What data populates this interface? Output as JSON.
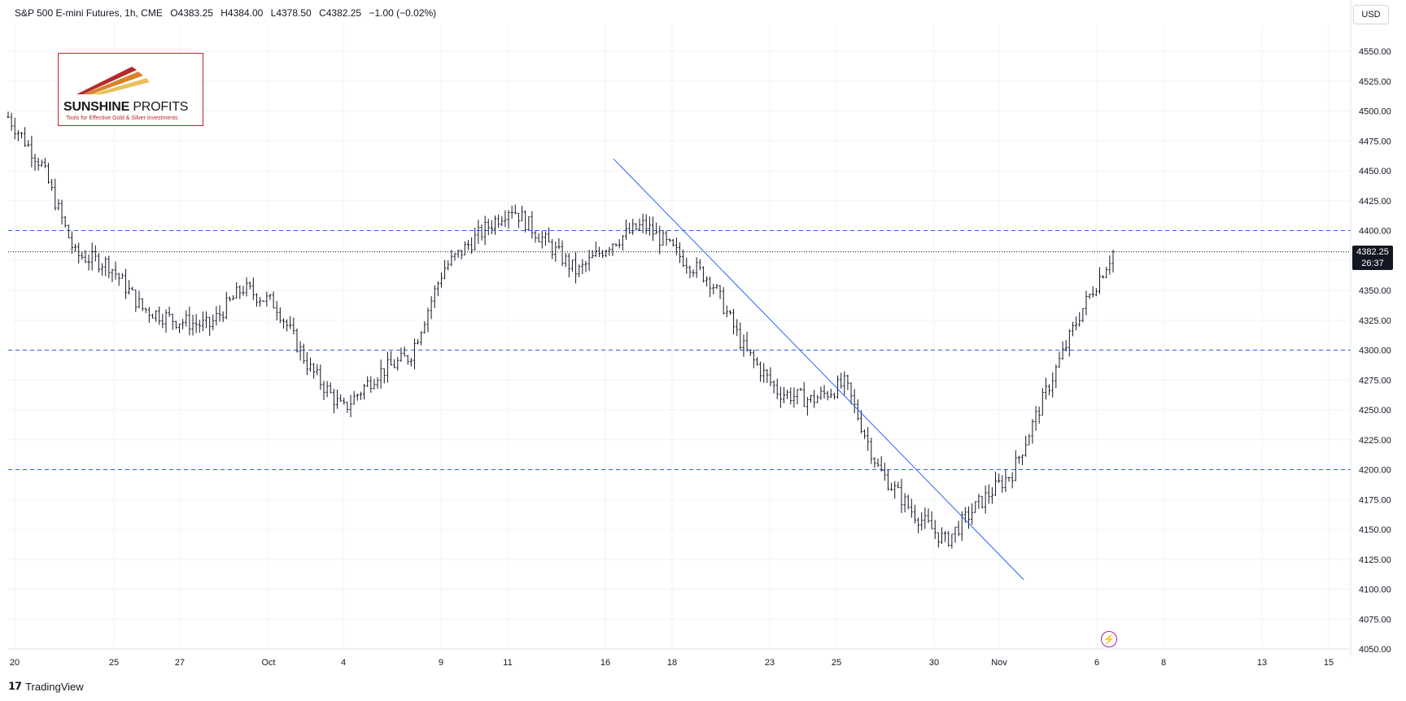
{
  "header": {
    "symbol": "S&P 500 E-mini Futures, 1h, CME",
    "open": "O4383.25",
    "high": "H4384.00",
    "low": "L4378.50",
    "close": "C4382.25",
    "change": "−1.00 (−0.02%)"
  },
  "currency": "USD",
  "price_tag": {
    "price": "4382.25",
    "countdown": "26:37"
  },
  "logo": {
    "brand_bold": "SUNSHINE",
    "brand_thin": " PROFITS",
    "tagline": "Tools for Effective Gold & Silver Investments"
  },
  "footer": {
    "brand": "TradingView"
  },
  "colors": {
    "candle": "#131722",
    "trendline": "#2962ff",
    "level_line": "#2962ff",
    "grid": "#f0f3fa"
  },
  "chart_data": {
    "type": "line",
    "title": "",
    "xlabel": "",
    "ylabel": "",
    "ylim": [
      4050,
      4560
    ],
    "x_ticks": [
      "20",
      "25",
      "27",
      "Oct",
      "4",
      "9",
      "11",
      "16",
      "18",
      "23",
      "25",
      "30",
      "Nov",
      "6",
      "8",
      "13",
      "15"
    ],
    "y_ticks": [
      "4050.00",
      "4075.00",
      "4100.00",
      "4125.00",
      "4150.00",
      "4175.00",
      "4200.00",
      "4225.00",
      "4250.00",
      "4275.00",
      "4300.00",
      "4325.00",
      "4350.00",
      "4375.00",
      "4400.00",
      "4425.00",
      "4450.00",
      "4475.00",
      "4500.00",
      "4525.00",
      "4550.00"
    ],
    "horizontal_levels": [
      4400,
      4300,
      4200
    ],
    "last_price": 4382.25,
    "trendline": {
      "from": {
        "x": "Oct 16",
        "y": 4460
      },
      "to": {
        "x": "Nov 1",
        "y": 4108
      }
    },
    "series": [
      {
        "x": [
          "Sep 20",
          "Sep 21",
          "Sep 22",
          "Sep 25",
          "Sep 26",
          "Sep 27",
          "Sep 28",
          "Sep 29",
          "Oct 2",
          "Oct 3",
          "Oct 4",
          "Oct 5",
          "Oct 6",
          "Oct 9",
          "Oct 10",
          "Oct 11",
          "Oct 12",
          "Oct 13",
          "Oct 16",
          "Oct 17",
          "Oct 18",
          "Oct 19",
          "Oct 20",
          "Oct 23",
          "Oct 24",
          "Oct 25",
          "Oct 26",
          "Oct 27",
          "Oct 30",
          "Oct 31",
          "Nov 1",
          "Nov 2",
          "Nov 3",
          "Nov 6"
        ],
        "values": [
          4495,
          4455,
          4380,
          4372,
          4335,
          4325,
          4320,
          4352,
          4338,
          4285,
          4250,
          4280,
          4295,
          4368,
          4395,
          4420,
          4392,
          4365,
          4390,
          4405,
          4380,
          4358,
          4300,
          4265,
          4258,
          4272,
          4200,
          4165,
          4140,
          4172,
          4198,
          4265,
          4330,
          4382
        ]
      }
    ]
  }
}
